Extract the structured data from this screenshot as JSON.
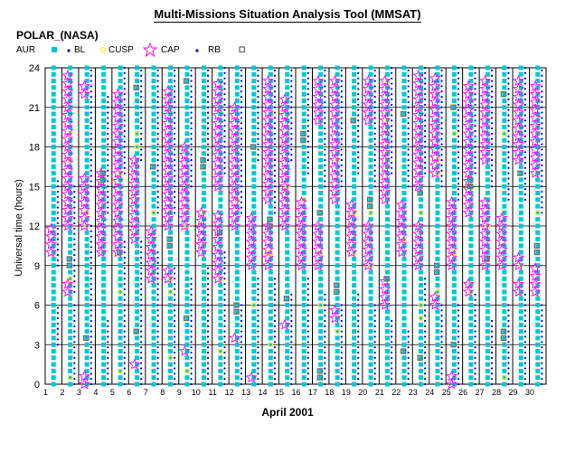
{
  "header": {
    "title": "Multi-Missions Situation Analysis Tool (MMSAT)",
    "mission": "POLAR_(NASA)"
  },
  "legend": {
    "items": [
      {
        "key": "aur",
        "label": "AUR",
        "color": "#00c8d0",
        "marker": "square"
      },
      {
        "key": "bl",
        "label": "BL",
        "color": "#0000c0",
        "marker": "dot"
      },
      {
        "key": "cusp",
        "label": "CUSP",
        "color": "#ffee33",
        "marker": "circle"
      },
      {
        "key": "cap",
        "label": "CAP",
        "color": "#ff00ff",
        "marker": "star"
      },
      {
        "key": "rb",
        "label": "RB",
        "color": "#707070",
        "marker": "open-square"
      }
    ]
  },
  "chart_data": {
    "type": "scatter",
    "title": "Multi-Missions Situation Analysis Tool (MMSAT)",
    "subtitle": "POLAR_(NASA)",
    "xlabel": "April 2001",
    "ylabel": "Universal time (hours)",
    "xlim": [
      1,
      31
    ],
    "ylim": [
      0,
      24
    ],
    "x_ticks": [
      1,
      2,
      3,
      4,
      5,
      6,
      7,
      8,
      9,
      10,
      11,
      12,
      13,
      14,
      15,
      16,
      17,
      18,
      19,
      20,
      21,
      22,
      23,
      24,
      25,
      26,
      27,
      28,
      29,
      30
    ],
    "y_ticks": [
      0,
      3,
      6,
      9,
      12,
      15,
      18,
      21,
      24
    ],
    "grid": true,
    "legend_position": "top-left",
    "series": [
      {
        "name": "AUR",
        "columns": [
          [
            0,
            24
          ],
          [
            0,
            24
          ],
          [
            0,
            24
          ],
          [
            0,
            24
          ],
          [
            0,
            24
          ],
          [
            0,
            24
          ],
          [
            0,
            24
          ],
          [
            0,
            24
          ],
          [
            0,
            24
          ],
          [
            0,
            24
          ],
          [
            0,
            24
          ],
          [
            0,
            24
          ],
          [
            0,
            24
          ],
          [
            0,
            24
          ],
          [
            0,
            24
          ],
          [
            0,
            24
          ],
          [
            0,
            24
          ],
          [
            0,
            24
          ],
          [
            0,
            24
          ],
          [
            0,
            24
          ],
          [
            0,
            24
          ],
          [
            0,
            24
          ],
          [
            0,
            24
          ],
          [
            0,
            24
          ],
          [
            0,
            24
          ],
          [
            0,
            24
          ],
          [
            0,
            24
          ],
          [
            0,
            24
          ],
          [
            0,
            24
          ],
          [
            0,
            24
          ]
        ]
      },
      {
        "name": "BL",
        "columns": [
          [
            [
              9,
              15.5
            ],
            [
              3,
              6
            ]
          ],
          [
            [
              7,
              15
            ],
            [
              0,
              6
            ]
          ],
          [
            [
              0,
              12
            ],
            [
              15,
              24
            ]
          ],
          [
            [
              0,
              5
            ],
            [
              13,
              22
            ]
          ],
          [
            [
              0,
              11
            ],
            [
              16,
              24
            ]
          ],
          [
            [
              0,
              11
            ],
            [
              17,
              24
            ]
          ],
          [
            [
              0,
              10
            ],
            [
              13,
              24
            ]
          ],
          [
            [
              0,
              9
            ],
            [
              13,
              24
            ]
          ],
          [
            [
              0,
              8
            ],
            [
              15,
              24
            ]
          ],
          [
            [
              0,
              9
            ],
            [
              17,
              24
            ]
          ],
          [
            [
              0,
              10
            ],
            [
              16,
              24
            ]
          ],
          [
            [
              0,
              6
            ],
            [
              13,
              24
            ]
          ],
          [
            [
              0,
              8
            ],
            [
              17,
              24
            ]
          ],
          [
            [
              0,
              8
            ],
            [
              13,
              24
            ]
          ],
          [
            [
              0,
              7
            ],
            [
              17,
              24
            ]
          ],
          [
            [
              0,
              8
            ],
            [
              16,
              24
            ]
          ],
          [
            [
              0,
              7
            ],
            [
              15,
              24
            ]
          ],
          [
            [
              0,
              6
            ],
            [
              15,
              24
            ]
          ],
          [
            [
              0,
              7
            ],
            [
              16,
              24
            ]
          ],
          [
            [
              0,
              6
            ],
            [
              15,
              24
            ]
          ],
          [
            [
              0,
              5
            ],
            [
              16,
              24
            ]
          ],
          [
            [
              0,
              4
            ],
            [
              15,
              24
            ]
          ],
          [
            [
              0,
              8
            ],
            [
              16,
              24
            ]
          ],
          [
            [
              0,
              6
            ],
            [
              15,
              24
            ]
          ],
          [
            [
              0,
              6
            ],
            [
              14,
              24
            ]
          ],
          [
            [
              0,
              7
            ],
            [
              16,
              24
            ]
          ],
          [
            [
              0,
              5
            ],
            [
              15,
              24
            ]
          ],
          [
            [
              0,
              6
            ],
            [
              14,
              24
            ]
          ],
          [
            [
              0,
              7
            ],
            [
              14,
              24
            ]
          ],
          [
            [
              0,
              6
            ],
            [
              13,
              24
            ]
          ]
        ]
      },
      {
        "name": "CUSP",
        "points": [
          [
            2,
            19
          ],
          [
            2,
            17
          ],
          [
            2,
            8
          ],
          [
            2,
            0.5
          ],
          [
            3,
            13
          ],
          [
            3,
            12
          ],
          [
            5,
            7
          ],
          [
            5,
            1
          ],
          [
            5,
            16
          ],
          [
            6,
            19
          ],
          [
            6,
            18
          ],
          [
            7,
            13
          ],
          [
            8,
            8
          ],
          [
            8,
            7
          ],
          [
            8,
            2
          ],
          [
            9,
            1
          ],
          [
            9,
            12
          ],
          [
            10,
            13
          ],
          [
            11,
            8
          ],
          [
            11,
            2.5
          ],
          [
            12,
            14
          ],
          [
            13,
            6
          ],
          [
            14,
            3
          ],
          [
            14,
            10
          ],
          [
            15,
            15
          ],
          [
            16,
            14
          ],
          [
            17,
            6
          ],
          [
            17,
            10
          ],
          [
            18,
            4
          ],
          [
            18,
            17
          ],
          [
            19,
            13
          ],
          [
            19,
            10
          ],
          [
            20,
            13
          ],
          [
            20,
            9
          ],
          [
            21,
            23
          ],
          [
            21,
            20
          ],
          [
            22,
            11
          ],
          [
            23,
            6
          ],
          [
            23,
            5
          ],
          [
            23,
            13
          ],
          [
            24,
            17
          ],
          [
            24,
            16
          ],
          [
            24,
            7
          ],
          [
            25,
            19
          ],
          [
            25,
            10
          ],
          [
            26,
            7
          ],
          [
            27,
            12
          ],
          [
            28,
            0.5
          ],
          [
            28,
            19
          ],
          [
            29,
            9
          ],
          [
            30,
            13
          ]
        ]
      },
      {
        "name": "CAP",
        "columns": [
          [
            [
              10,
              12
            ]
          ],
          [
            [
              7,
              8
            ],
            [
              12,
              23.5
            ]
          ],
          [
            [
              0,
              1
            ],
            [
              12,
              16
            ],
            [
              22,
              23
            ]
          ],
          [
            [
              10,
              16
            ]
          ],
          [
            [
              10,
              22.5
            ]
          ],
          [
            [
              1.5,
              2
            ],
            [
              11,
              17
            ]
          ],
          [
            [
              8,
              12
            ]
          ],
          [
            [
              8,
              9
            ],
            [
              12,
              22.5
            ]
          ],
          [
            [
              2.5,
              3
            ],
            [
              12,
              18
            ]
          ],
          [
            [
              10,
              13
            ]
          ],
          [
            [
              8,
              13
            ],
            [
              15,
              23
            ]
          ],
          [
            [
              3.5,
              4
            ],
            [
              12,
              21
            ]
          ],
          [
            [
              0.5,
              1
            ],
            [
              9,
              13
            ]
          ],
          [
            [
              9,
              12
            ],
            [
              14,
              23
            ]
          ],
          [
            [
              4.5,
              5
            ],
            [
              12,
              22
            ]
          ],
          [
            [
              9,
              14
            ]
          ],
          [
            [
              9,
              12
            ],
            [
              20,
              23
            ]
          ],
          [
            [
              5,
              6
            ],
            [
              14,
              23
            ]
          ],
          [
            [
              10,
              14
            ]
          ],
          [
            [
              9,
              12
            ],
            [
              20,
              23
            ]
          ],
          [
            [
              6,
              8
            ],
            [
              14,
              23.5
            ]
          ],
          [
            [
              10,
              14
            ]
          ],
          [
            [
              9,
              12
            ],
            [
              15,
              23.5
            ]
          ],
          [
            [
              6,
              7
            ],
            [
              16,
              23.5
            ]
          ],
          [
            [
              0,
              1
            ],
            [
              9,
              14
            ]
          ],
          [
            [
              7,
              8
            ],
            [
              13,
              23
            ]
          ],
          [
            [
              9,
              14
            ],
            [
              17,
              23
            ]
          ],
          [
            [
              9,
              13
            ]
          ],
          [
            [
              7,
              8
            ],
            [
              9,
              10
            ],
            [
              17,
              23
            ]
          ],
          [
            [
              7,
              9
            ],
            [
              16,
              23
            ]
          ]
        ]
      },
      {
        "name": "RB",
        "points": [
          [
            2,
            9.5
          ],
          [
            2,
            9
          ],
          [
            3,
            3.5
          ],
          [
            4,
            16
          ],
          [
            4,
            15.5
          ],
          [
            5,
            10
          ],
          [
            6,
            22.5
          ],
          [
            6,
            4
          ],
          [
            7,
            16.5
          ],
          [
            8,
            11
          ],
          [
            8,
            10.5
          ],
          [
            9,
            23
          ],
          [
            9,
            5
          ],
          [
            10,
            17
          ],
          [
            10,
            16.5
          ],
          [
            11,
            11.5
          ],
          [
            12,
            6
          ],
          [
            12,
            5.5
          ],
          [
            13,
            18
          ],
          [
            14,
            12.5
          ],
          [
            14,
            12
          ],
          [
            15,
            6.5
          ],
          [
            16,
            19
          ],
          [
            16,
            18.5
          ],
          [
            17,
            13
          ],
          [
            17,
            0.5
          ],
          [
            17,
            1
          ],
          [
            18,
            7.5
          ],
          [
            18,
            7
          ],
          [
            19,
            20
          ],
          [
            20,
            14
          ],
          [
            20,
            13.5
          ],
          [
            21,
            8
          ],
          [
            22,
            20.5
          ],
          [
            22,
            2.5
          ],
          [
            23,
            2
          ],
          [
            23,
            14.5
          ],
          [
            24,
            9
          ],
          [
            24,
            8.5
          ],
          [
            25,
            21
          ],
          [
            25,
            3
          ],
          [
            26,
            15.5
          ],
          [
            26,
            15
          ],
          [
            27,
            9.5
          ],
          [
            28,
            22
          ],
          [
            28,
            3.5
          ],
          [
            28,
            4
          ],
          [
            29,
            16
          ],
          [
            30,
            10.5
          ],
          [
            30,
            10
          ]
        ]
      }
    ]
  }
}
